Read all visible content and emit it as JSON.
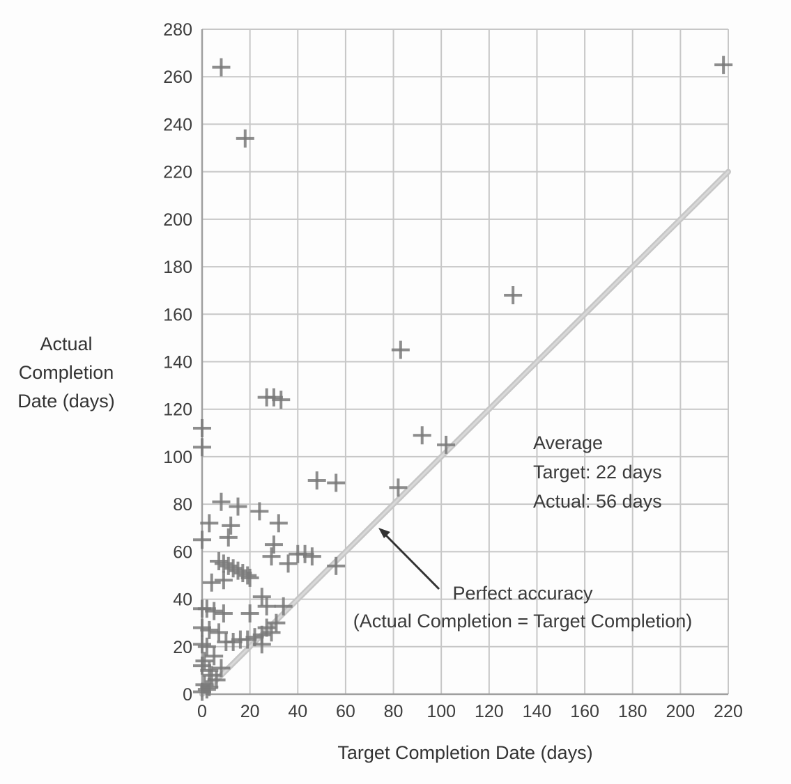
{
  "chart_data": {
    "type": "scatter",
    "title": "",
    "xlabel": "Target Completion Date (days)",
    "ylabel_lines": [
      "Actual",
      "Completion",
      "Date (days)"
    ],
    "xlim": [
      0,
      220
    ],
    "ylim": [
      0,
      280
    ],
    "x_ticks": [
      0,
      20,
      40,
      60,
      80,
      100,
      120,
      140,
      160,
      180,
      200,
      220
    ],
    "y_ticks": [
      0,
      20,
      40,
      60,
      80,
      100,
      120,
      140,
      160,
      180,
      200,
      220,
      240,
      260,
      280
    ],
    "grid": true,
    "legend": "none",
    "marker": "plus",
    "points": [
      [
        8,
        264
      ],
      [
        18,
        234
      ],
      [
        218,
        265
      ],
      [
        130,
        168
      ],
      [
        83,
        145
      ],
      [
        27,
        125
      ],
      [
        30,
        125
      ],
      [
        33,
        124
      ],
      [
        0,
        112
      ],
      [
        0,
        104
      ],
      [
        92,
        109
      ],
      [
        102,
        105
      ],
      [
        48,
        90
      ],
      [
        56,
        89
      ],
      [
        82,
        87
      ],
      [
        8,
        81
      ],
      [
        15,
        79
      ],
      [
        24,
        77
      ],
      [
        3,
        72
      ],
      [
        12,
        71
      ],
      [
        32,
        72
      ],
      [
        11,
        66
      ],
      [
        0,
        65
      ],
      [
        30,
        63
      ],
      [
        29,
        58
      ],
      [
        36,
        55
      ],
      [
        40,
        59
      ],
      [
        43,
        59
      ],
      [
        46,
        58
      ],
      [
        56,
        54
      ],
      [
        7,
        56
      ],
      [
        9,
        55
      ],
      [
        11,
        54
      ],
      [
        13,
        53
      ],
      [
        15,
        52
      ],
      [
        17,
        51
      ],
      [
        19,
        50
      ],
      [
        20,
        49
      ],
      [
        9,
        48
      ],
      [
        4,
        47
      ],
      [
        25,
        41
      ],
      [
        0,
        36
      ],
      [
        2,
        36
      ],
      [
        5,
        35
      ],
      [
        9,
        34
      ],
      [
        20,
        34
      ],
      [
        27,
        37
      ],
      [
        34,
        37
      ],
      [
        0,
        28
      ],
      [
        3,
        27
      ],
      [
        7,
        26
      ],
      [
        10,
        22
      ],
      [
        13,
        22
      ],
      [
        16,
        23
      ],
      [
        19,
        23
      ],
      [
        22,
        24
      ],
      [
        25,
        25
      ],
      [
        27,
        28
      ],
      [
        29,
        26
      ],
      [
        31,
        30
      ],
      [
        25,
        21
      ],
      [
        0,
        21
      ],
      [
        2,
        20
      ],
      [
        5,
        16
      ],
      [
        1,
        14
      ],
      [
        0,
        12
      ],
      [
        8,
        11
      ],
      [
        3,
        10
      ],
      [
        4,
        8
      ],
      [
        6,
        6
      ],
      [
        1,
        4
      ],
      [
        2,
        2
      ],
      [
        0,
        1
      ],
      [
        3,
        3
      ]
    ],
    "reference_line": {
      "from": [
        0,
        0
      ],
      "to": [
        220,
        220
      ],
      "label_line1": "Perfect accuracy",
      "label_line2": "(Actual Completion = Target Completion)"
    },
    "annotation": {
      "line1": "Average",
      "line2": "Target: 22 days",
      "line3": "Actual: 56 days"
    },
    "colors": {
      "grid": "#c7c7c7",
      "axis": "#9f9f9f",
      "marker": "#7a7a7a",
      "reference_line": "#c6c6c6",
      "text": "#3a3a3a",
      "arrow": "#333333"
    }
  }
}
